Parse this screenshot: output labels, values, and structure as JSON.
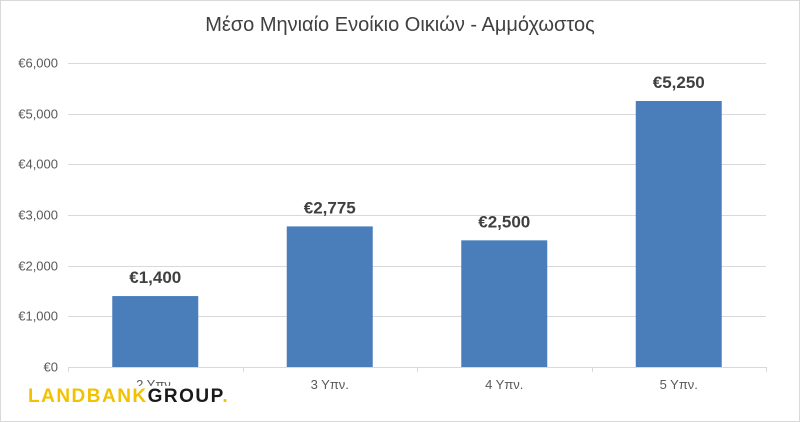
{
  "chart_data": {
    "type": "bar",
    "title": "Μέσο Μηνιαίο Ενοίκιο Οικιών - Αμμόχωστος",
    "categories": [
      "2 Υπν.",
      "3 Υπν.",
      "4 Υπν.",
      "5 Υπν."
    ],
    "values": [
      1400,
      2775,
      2500,
      5250
    ],
    "data_labels": [
      "€1,400",
      "€2,775",
      "€2,500",
      "€5,250"
    ],
    "ylim": [
      0,
      6000
    ],
    "yticks": [
      0,
      1000,
      2000,
      3000,
      4000,
      5000,
      6000
    ],
    "ytick_labels": [
      "€0",
      "€1,000",
      "€2,000",
      "€3,000",
      "€4,000",
      "€5,000",
      "€6,000"
    ],
    "grid": true,
    "bar_color": "#4a7ebb",
    "xlabel": "",
    "ylabel": ""
  },
  "logo": {
    "part1": "LANDBANK",
    "part2": "GROUP",
    "dot": ".",
    "accent_color": "#f2c200"
  }
}
